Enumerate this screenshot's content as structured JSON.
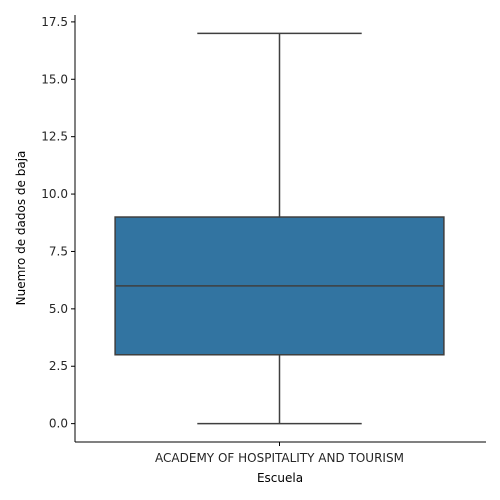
{
  "chart_data": {
    "type": "box",
    "xlabel": "Escuela",
    "ylabel": "Nuemro de dados de baja",
    "categories": [
      "ACADEMY OF HOSPITALITY AND TOURISM"
    ],
    "ylim": [
      -0.8,
      17.8
    ],
    "yticks": [
      0.0,
      2.5,
      5.0,
      7.5,
      10.0,
      12.5,
      15.0,
      17.5
    ],
    "ytick_labels": [
      "0.0",
      "2.5",
      "5.0",
      "7.5",
      "10.0",
      "12.5",
      "15.0",
      "17.5"
    ],
    "boxes": [
      {
        "category": "ACADEMY OF HOSPITALITY AND TOURISM",
        "min": 0,
        "q1": 3,
        "median": 6,
        "q3": 9,
        "max": 17
      }
    ],
    "colors": {
      "box_fill": "#3274a1",
      "lines": "#3f3f3f",
      "axes": "#000000"
    },
    "grid": false,
    "spines": "left-bottom"
  }
}
